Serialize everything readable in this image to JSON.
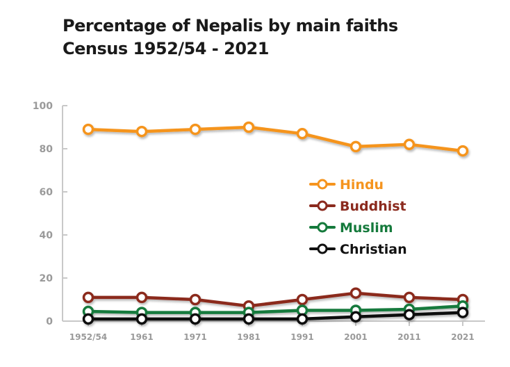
{
  "chart_data": {
    "type": "line",
    "title": "Percentage of Nepalis by main faiths",
    "subtitle": "Census 1952/54 - 2021",
    "categories": [
      "1952/54",
      "1961",
      "1971",
      "1981",
      "1991",
      "2001",
      "2011",
      "2021"
    ],
    "ylim": [
      0,
      100
    ],
    "yticks": [
      0,
      20,
      40,
      60,
      80,
      100
    ],
    "grid": false,
    "legend_position": "center-right",
    "series": [
      {
        "name": "Hindu",
        "color": "#f5941e",
        "values": [
          89,
          88,
          89,
          90,
          87,
          81,
          82,
          79
        ]
      },
      {
        "name": "Buddhist",
        "color": "#8b2a1e",
        "values": [
          11,
          11,
          10,
          7,
          10,
          13,
          11,
          10
        ]
      },
      {
        "name": "Muslim",
        "color": "#157a3c",
        "values": [
          4.5,
          4,
          4,
          4,
          5,
          5,
          5.5,
          7
        ]
      },
      {
        "name": "Christian",
        "color": "#111111",
        "values": [
          1,
          1,
          1,
          1,
          1,
          2,
          3,
          4
        ]
      }
    ]
  }
}
